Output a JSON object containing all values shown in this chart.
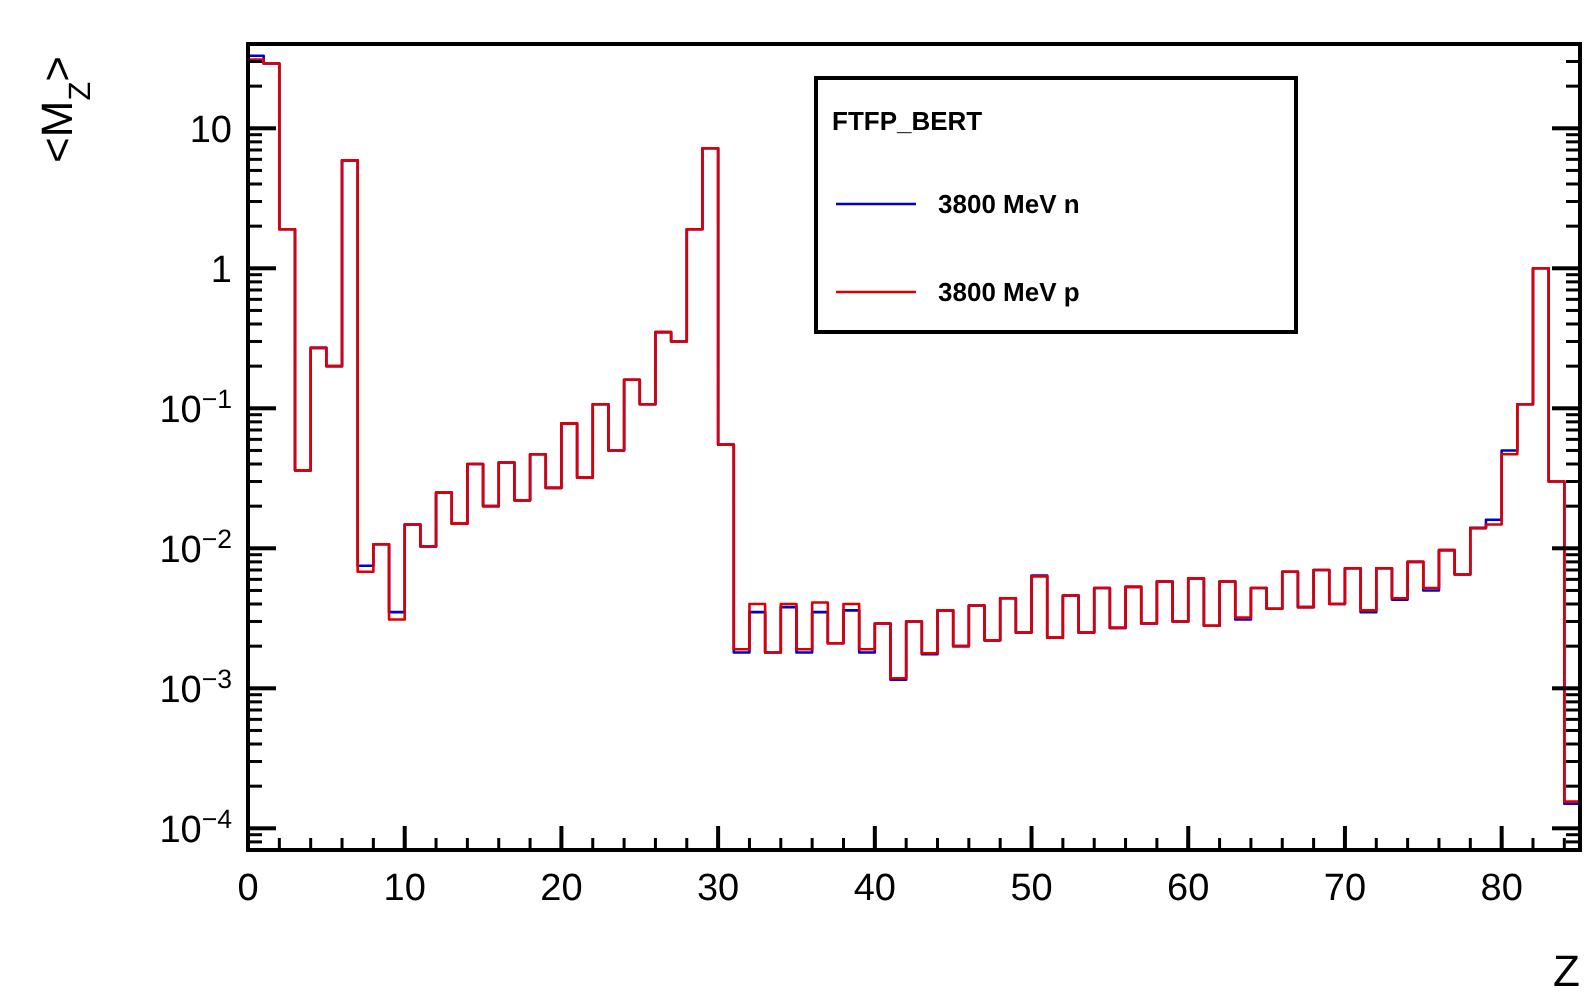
{
  "chart_data": {
    "type": "histogram",
    "xlabel": "Z",
    "ylabel": "<M$_{Z}$>",
    "legend_title": "FTFP_BERT",
    "legend": "top right",
    "log": "y",
    "grid": false,
    "bins": [
      0,
      1,
      2,
      3,
      4,
      5,
      6,
      7,
      8,
      9,
      10,
      11,
      12,
      13,
      14,
      15,
      16,
      17,
      18,
      19,
      20,
      21,
      22,
      23,
      24,
      25,
      26,
      27,
      28,
      29,
      30,
      31,
      32,
      33,
      34,
      35,
      36,
      37,
      38,
      39,
      40,
      41,
      42,
      43,
      44,
      45,
      46,
      47,
      48,
      49,
      50,
      51,
      52,
      53,
      54,
      55,
      56,
      57,
      58,
      59,
      60,
      61,
      62,
      63,
      64,
      65,
      66,
      67,
      68,
      69,
      70,
      71,
      72,
      73,
      74,
      75,
      76,
      77,
      78,
      79,
      80,
      81,
      82,
      83,
      84,
      85
    ],
    "xlim": [
      0,
      85
    ],
    "xticks": [
      0,
      10,
      20,
      30,
      40,
      50,
      60,
      70,
      80
    ],
    "ylim": [
      7e-05,
      40
    ],
    "yticks": [
      {
        "value": 0.0001,
        "label": "10$^{−4}$"
      },
      {
        "value": 0.001,
        "label": "10$^{−3}$"
      },
      {
        "value": 0.01,
        "label": "10$^{−2}$"
      },
      {
        "value": 0.1,
        "label": "10$^{−1}$"
      },
      1,
      10
    ],
    "series": [
      {
        "name": "3800 MeV n",
        "color": "#0000cc",
        "values": [
          33,
          29,
          1.9,
          0.036,
          0.27,
          0.2,
          5.9,
          0.0075,
          0.0107,
          0.0035,
          0.0148,
          0.0103,
          0.025,
          0.015,
          0.04,
          0.02,
          0.041,
          0.022,
          0.047,
          0.027,
          0.078,
          0.032,
          0.107,
          0.05,
          0.16,
          0.107,
          0.35,
          0.3,
          1.9,
          7.2,
          0.055,
          0.0018,
          0.0035,
          0.0018,
          0.0038,
          0.0018,
          0.0035,
          0.0021,
          0.0036,
          0.0018,
          0.0029,
          0.00115,
          0.003,
          0.00175,
          0.0036,
          0.002,
          0.0039,
          0.0022,
          0.0044,
          0.0025,
          0.0064,
          0.0023,
          0.0046,
          0.0025,
          0.0052,
          0.0027,
          0.0053,
          0.0029,
          0.0058,
          0.003,
          0.0061,
          0.0028,
          0.0058,
          0.0031,
          0.0052,
          0.0037,
          0.0068,
          0.0038,
          0.007,
          0.004,
          0.0072,
          0.0035,
          0.0072,
          0.0043,
          0.008,
          0.005,
          0.0097,
          0.0065,
          0.014,
          0.016,
          0.05,
          0.107,
          1.0,
          0.03,
          0.00015
        ]
      },
      {
        "name": "3800 MeV p",
        "color": "#dd0000",
        "values": [
          31,
          29,
          1.9,
          0.036,
          0.27,
          0.2,
          5.9,
          0.0068,
          0.0107,
          0.0031,
          0.0148,
          0.0103,
          0.025,
          0.015,
          0.04,
          0.02,
          0.041,
          0.022,
          0.047,
          0.027,
          0.078,
          0.032,
          0.107,
          0.05,
          0.16,
          0.107,
          0.35,
          0.3,
          1.9,
          7.2,
          0.055,
          0.0019,
          0.004,
          0.0018,
          0.004,
          0.0019,
          0.0041,
          0.0021,
          0.004,
          0.0019,
          0.0029,
          0.00118,
          0.003,
          0.00178,
          0.0036,
          0.002,
          0.0039,
          0.0022,
          0.0044,
          0.0025,
          0.0063,
          0.0023,
          0.0046,
          0.0025,
          0.0052,
          0.0027,
          0.0053,
          0.0029,
          0.0058,
          0.003,
          0.0061,
          0.0028,
          0.0058,
          0.0032,
          0.0052,
          0.0037,
          0.0068,
          0.0038,
          0.007,
          0.004,
          0.0072,
          0.0036,
          0.0072,
          0.0044,
          0.008,
          0.0052,
          0.0097,
          0.0065,
          0.0139,
          0.0148,
          0.047,
          0.107,
          1.0,
          0.03,
          0.000155
        ]
      }
    ]
  }
}
